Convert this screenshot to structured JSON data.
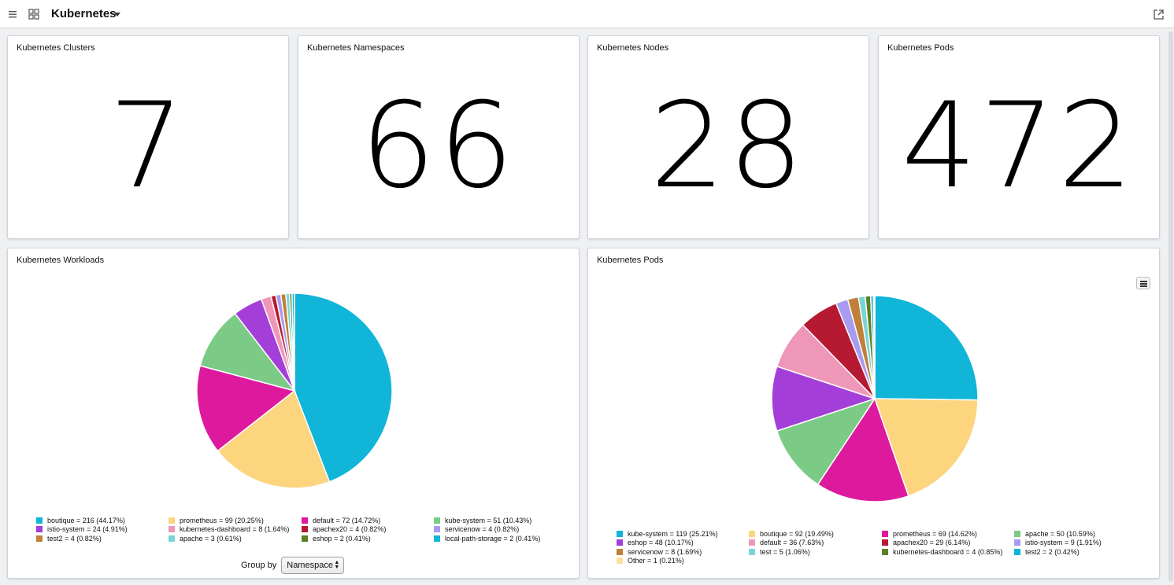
{
  "header": {
    "title": "Kubernetes"
  },
  "stats": [
    {
      "title": "Kubernetes Clusters",
      "value": "7"
    },
    {
      "title": "Kubernetes Namespaces",
      "value": "66"
    },
    {
      "title": "Kubernetes Nodes",
      "value": "28"
    },
    {
      "title": "Kubernetes Pods",
      "value": "472"
    }
  ],
  "workloads": {
    "title": "Kubernetes Workloads",
    "group_by_label": "Group by",
    "group_by_value": "Namespace",
    "legend": [
      "boutique = 216 (44.17%)",
      "prometheus = 99 (20.25%)",
      "default = 72 (14.72%)",
      "kube-system = 51 (10.43%)",
      "istio-system = 24 (4.91%)",
      "kubernetes-dashboard = 8 (1.64%)",
      "apachex20 = 4 (0.82%)",
      "servicenow = 4 (0.82%)",
      "test2 = 4 (0.82%)",
      "apache = 3 (0.61%)",
      "eshop = 2 (0.41%)",
      "local-path-storage = 2 (0.41%)"
    ]
  },
  "pods": {
    "title": "Kubernetes Pods",
    "legend": [
      "kube-system = 119 (25.21%)",
      "boutique = 92 (19.49%)",
      "prometheus = 69 (14.62%)",
      "apache = 50 (10.59%)",
      "eshop = 48 (10.17%)",
      "default = 36 (7.63%)",
      "apachex20 = 29 (6.14%)",
      "istio-system = 9 (1.91%)",
      "servicenow = 8 (1.69%)",
      "test = 5 (1.06%)",
      "kubernetes-dashboard = 4 (0.85%)",
      "test2 = 2 (0.42%)",
      "Other = 1 (0.21%)"
    ]
  },
  "chart_data": [
    {
      "type": "pie",
      "title": "Kubernetes Workloads",
      "categories": [
        "boutique",
        "prometheus",
        "default",
        "kube-system",
        "istio-system",
        "kubernetes-dashboard",
        "apachex20",
        "servicenow",
        "test2",
        "apache",
        "eshop",
        "local-path-storage"
      ],
      "values": [
        216,
        99,
        72,
        51,
        24,
        8,
        4,
        4,
        4,
        3,
        2,
        2
      ],
      "colors": [
        "#10b5d8",
        "#fdd57e",
        "#dd1a9d",
        "#7bcb86",
        "#a33fd8",
        "#ee97b8",
        "#b61a33",
        "#a79cf0",
        "#c0803a",
        "#78d5d5",
        "#5b7f26",
        "#10b5d8"
      ]
    },
    {
      "type": "pie",
      "title": "Kubernetes Pods",
      "categories": [
        "kube-system",
        "boutique",
        "prometheus",
        "apache",
        "eshop",
        "default",
        "apachex20",
        "istio-system",
        "servicenow",
        "test",
        "kubernetes-dashboard",
        "test2",
        "Other"
      ],
      "values": [
        119,
        92,
        69,
        50,
        48,
        36,
        29,
        9,
        8,
        5,
        4,
        2,
        1
      ],
      "colors": [
        "#10b5d8",
        "#fdd57e",
        "#dd1a9d",
        "#7bcb86",
        "#a33fd8",
        "#ee97b8",
        "#b61a33",
        "#a79cf0",
        "#c0803a",
        "#78d5d5",
        "#5b7f26",
        "#10b5d8",
        "#fde0a0"
      ]
    }
  ]
}
